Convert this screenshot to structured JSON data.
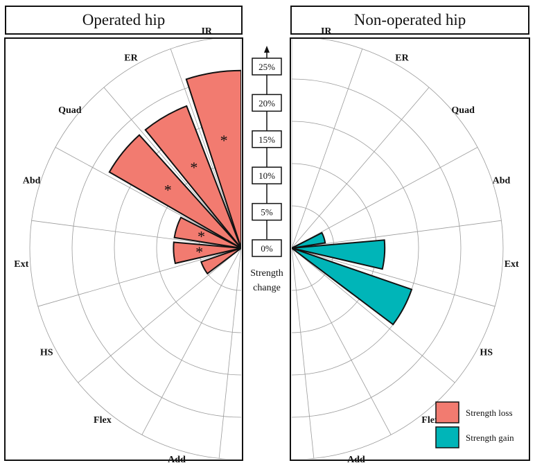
{
  "colors": {
    "loss": "#F27B70",
    "gain": "#00B5B8",
    "grid": "#9a9a9a",
    "ink": "#111111"
  },
  "chart_data": [
    {
      "type": "polar-bar",
      "title": "Operated hip",
      "categories": [
        "IR",
        "ER",
        "Quad",
        "Abd",
        "Ext",
        "HS",
        "Flex",
        "Add"
      ],
      "series": [
        {
          "name": "Strength loss",
          "values": [
            21,
            18,
            18,
            8,
            8,
            5,
            0,
            0
          ]
        },
        {
          "name": "Strength gain",
          "values": [
            0,
            0,
            0,
            0,
            0,
            0,
            0,
            0
          ]
        }
      ],
      "significant": [
        "IR",
        "ER",
        "Quad",
        "Abd",
        "Ext"
      ],
      "significance_marker": "*",
      "rlim": [
        0,
        25
      ]
    },
    {
      "type": "polar-bar",
      "title": "Non-operated hip",
      "categories": [
        "IR",
        "ER",
        "Quad",
        "Abd",
        "Ext",
        "HS",
        "Flex",
        "Add"
      ],
      "series": [
        {
          "name": "Strength loss",
          "values": [
            0,
            0,
            0,
            2,
            0,
            0,
            0,
            0
          ]
        },
        {
          "name": "Strength gain",
          "values": [
            0,
            0,
            0,
            4,
            11,
            15,
            0,
            0
          ]
        }
      ],
      "significant": [],
      "significance_marker": "*",
      "rlim": [
        0,
        25
      ]
    }
  ],
  "shared_axis": {
    "ticks": [
      "0%",
      "5%",
      "10%",
      "15%",
      "20%",
      "25%"
    ],
    "tick_values": [
      0,
      5,
      10,
      15,
      20,
      25
    ],
    "title_line1": "Strength",
    "title_line2": "change"
  },
  "legend": [
    {
      "label": "Strength loss",
      "color_key": "loss"
    },
    {
      "label": "Strength gain",
      "color_key": "gain"
    }
  ]
}
